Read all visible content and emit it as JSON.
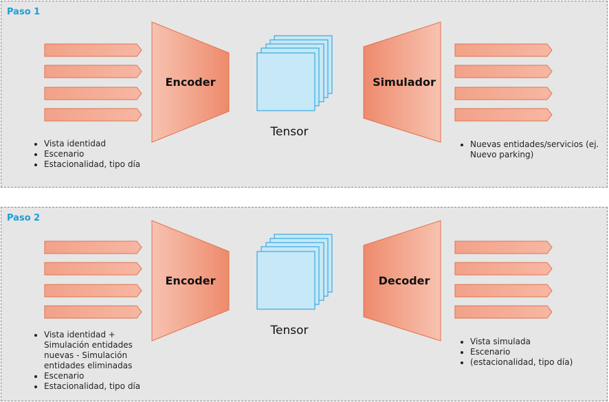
{
  "steps": [
    {
      "title": "Paso 1",
      "encoder_label": "Encoder",
      "tensor_label": "Tensor",
      "right_block_label": "Simulador",
      "input_bullets": [
        "Vista identidad",
        "Escenario",
        "Estacionalidad, tipo día"
      ],
      "output_bullets": [
        "Nuevas entidades/servicios (ej. Nuevo parking)"
      ]
    },
    {
      "title": "Paso 2",
      "encoder_label": "Encoder",
      "tensor_label": "Tensor",
      "right_block_label": "Decoder",
      "input_bullets": [
        "Vista identidad + Simulación entidades nuevas - Simulación entidades eliminadas",
        "Escenario",
        "Estacionalidad, tipo día"
      ],
      "output_bullets": [
        "Vista simulada",
        "Escenario",
        "(estacionalidad, tipo día)"
      ]
    }
  ],
  "colors": {
    "panel_background": "#e6e6e6",
    "title_blue": "#1a9ed9",
    "block_fill_light": "#f6b9a5",
    "block_fill_dark": "#ee8a6c",
    "block_stroke": "#e0714f",
    "tensor_fill": "#c6e8f7",
    "tensor_stroke": "#3aa9de"
  }
}
